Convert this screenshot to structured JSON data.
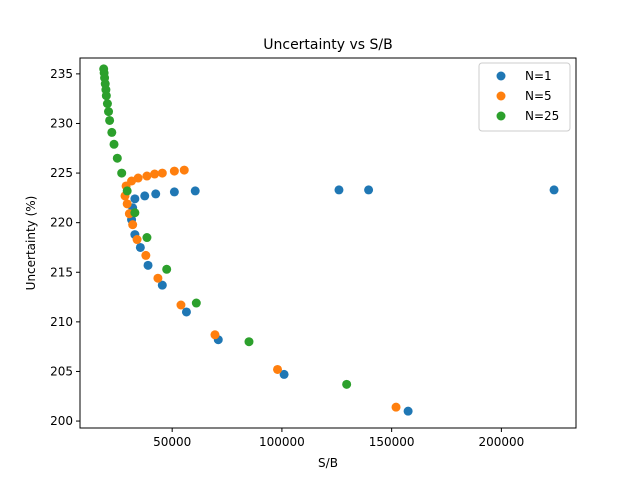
{
  "chart_data": {
    "type": "scatter",
    "title": "Uncertainty vs S/B",
    "xlabel": "S/B",
    "ylabel": "Uncertainty (%)",
    "xlim": [
      8000,
      234000
    ],
    "ylim": [
      199.3,
      236.6
    ],
    "xticks": [
      50000,
      100000,
      150000,
      200000
    ],
    "xtick_labels": [
      "50000",
      "100000",
      "150000",
      "200000"
    ],
    "yticks": [
      200,
      205,
      210,
      215,
      220,
      225,
      230,
      235
    ],
    "ytick_labels": [
      "200",
      "205",
      "210",
      "215",
      "220",
      "225",
      "230",
      "235"
    ],
    "legend_position": "top-right",
    "series": [
      {
        "name": "N=1",
        "color": "#1f77b4",
        "points": [
          [
            157500,
            201.0
          ],
          [
            101000,
            204.7
          ],
          [
            71000,
            208.2
          ],
          [
            56500,
            211.0
          ],
          [
            45500,
            213.7
          ],
          [
            39000,
            215.7
          ],
          [
            35500,
            217.5
          ],
          [
            33000,
            218.8
          ],
          [
            31500,
            220.3
          ],
          [
            32000,
            221.5
          ],
          [
            33000,
            222.4
          ],
          [
            37500,
            222.7
          ],
          [
            42500,
            222.9
          ],
          [
            51000,
            223.1
          ],
          [
            60500,
            223.2
          ],
          [
            126000,
            223.3
          ],
          [
            139500,
            223.3
          ],
          [
            224000,
            223.3
          ]
        ]
      },
      {
        "name": "N=5",
        "color": "#ff7f0e",
        "points": [
          [
            152000,
            201.4
          ],
          [
            98000,
            205.2
          ],
          [
            69500,
            208.7
          ],
          [
            54000,
            211.7
          ],
          [
            43500,
            214.4
          ],
          [
            38000,
            216.7
          ],
          [
            34000,
            218.3
          ],
          [
            32000,
            219.8
          ],
          [
            30500,
            220.9
          ],
          [
            29500,
            221.9
          ],
          [
            28500,
            222.7
          ],
          [
            29000,
            223.7
          ],
          [
            31500,
            224.2
          ],
          [
            34500,
            224.5
          ],
          [
            38500,
            224.7
          ],
          [
            42000,
            224.9
          ],
          [
            45500,
            225.0
          ],
          [
            51000,
            225.2
          ],
          [
            55500,
            225.3
          ]
        ]
      },
      {
        "name": "N=25",
        "color": "#2ca02c",
        "points": [
          [
            129500,
            203.7
          ],
          [
            85000,
            208.0
          ],
          [
            61000,
            211.9
          ],
          [
            47500,
            215.3
          ],
          [
            38500,
            218.5
          ],
          [
            33000,
            221.0
          ],
          [
            29500,
            223.2
          ],
          [
            27000,
            225.0
          ],
          [
            25000,
            226.5
          ],
          [
            23500,
            227.9
          ],
          [
            22500,
            229.1
          ],
          [
            21500,
            230.3
          ],
          [
            21000,
            231.2
          ],
          [
            20500,
            232.0
          ],
          [
            20000,
            232.8
          ],
          [
            19800,
            233.4
          ],
          [
            19500,
            234.0
          ],
          [
            19200,
            234.6
          ],
          [
            19000,
            235.1
          ],
          [
            18800,
            235.5
          ]
        ]
      }
    ]
  }
}
